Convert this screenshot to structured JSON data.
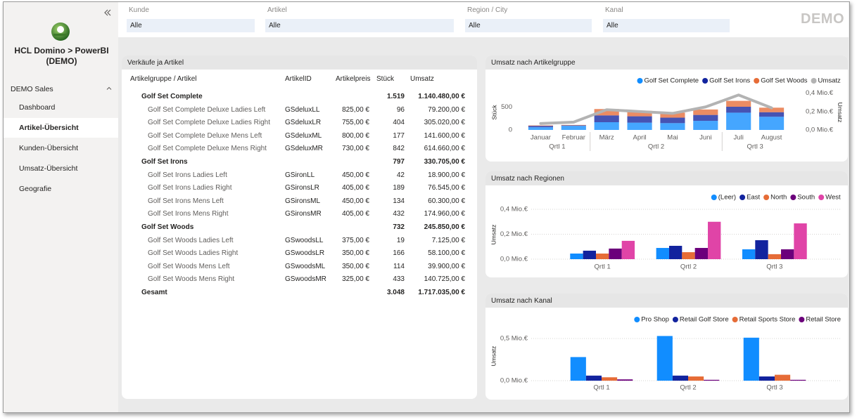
{
  "sidebar": {
    "title": "HCL Domino > PowerBI (DEMO)",
    "section": "DEMO Sales",
    "nav": [
      {
        "label": "Dashboard"
      },
      {
        "label": "Artikel-Übersicht",
        "active": true
      },
      {
        "label": "Kunden-Übersicht"
      },
      {
        "label": "Umsatz-Übersicht"
      },
      {
        "label": "Geografie"
      }
    ]
  },
  "filters": [
    {
      "label": "Kunde",
      "value": "Alle"
    },
    {
      "label": "Artikel",
      "value": "Alle"
    },
    {
      "label": "Region / City",
      "value": "Alle"
    },
    {
      "label": "Kanal",
      "value": "Alle"
    }
  ],
  "brand": "DEMO",
  "table": {
    "title": "Verkäufe ja Artikel",
    "columns": [
      "Artikelgruppe / Artikel",
      "ArtikelID",
      "Artikelpreis",
      "Stück",
      "Umsatz"
    ],
    "rows": [
      {
        "name": "Golf Set Complete",
        "group": true,
        "stueck": "1.519",
        "umsatz": "1.140.480,00 €"
      },
      {
        "name": "Golf Set Complete Deluxe Ladies Left",
        "id": "GSdeluxLL",
        "preis": "825,00 €",
        "stueck": "96",
        "umsatz": "79.200,00 €"
      },
      {
        "name": "Golf Set Complete Deluxe Ladies Right",
        "id": "GSdeluxLR",
        "preis": "755,00 €",
        "stueck": "404",
        "umsatz": "305.020,00 €"
      },
      {
        "name": "Golf Set Complete Deluxe Mens Left",
        "id": "GSdeluxML",
        "preis": "800,00 €",
        "stueck": "177",
        "umsatz": "141.600,00 €"
      },
      {
        "name": "Golf Set Complete Deluxe Mens Right",
        "id": "GSdeluxMR",
        "preis": "730,00 €",
        "stueck": "842",
        "umsatz": "614.660,00 €"
      },
      {
        "name": "Golf Set Irons",
        "group": true,
        "stueck": "797",
        "umsatz": "330.705,00 €"
      },
      {
        "name": "Golf Set Irons Ladies Left",
        "id": "GSironLL",
        "preis": "450,00 €",
        "stueck": "42",
        "umsatz": "18.900,00 €"
      },
      {
        "name": "Golf Set Irons Ladies Right",
        "id": "GSironsLR",
        "preis": "405,00 €",
        "stueck": "189",
        "umsatz": "76.545,00 €"
      },
      {
        "name": "Golf Set Irons Mens Left",
        "id": "GSironsML",
        "preis": "450,00 €",
        "stueck": "134",
        "umsatz": "60.300,00 €"
      },
      {
        "name": "Golf Set Irons Mens Right",
        "id": "GSironsMR",
        "preis": "405,00 €",
        "stueck": "432",
        "umsatz": "174.960,00 €"
      },
      {
        "name": "Golf Set Woods",
        "group": true,
        "stueck": "732",
        "umsatz": "245.850,00 €"
      },
      {
        "name": "Golf Set Woods Ladies Left",
        "id": "GSwoodsLL",
        "preis": "375,00 €",
        "stueck": "19",
        "umsatz": "7.125,00 €"
      },
      {
        "name": "Golf Set Woods Ladies Right",
        "id": "GSwoodsLR",
        "preis": "350,00 €",
        "stueck": "166",
        "umsatz": "58.100,00 €"
      },
      {
        "name": "Golf Set Woods Mens Left",
        "id": "GSwoodsML",
        "preis": "350,00 €",
        "stueck": "114",
        "umsatz": "39.900,00 €"
      },
      {
        "name": "Golf Set Woods Mens Right",
        "id": "GSwoodsMR",
        "preis": "325,00 €",
        "stueck": "433",
        "umsatz": "140.725,00 €"
      }
    ],
    "total": {
      "name": "Gesamt",
      "stueck": "3.048",
      "umsatz": "1.717.035,00 €"
    }
  },
  "chart_data": [
    {
      "type": "bar",
      "stacked": true,
      "title": "Umsatz nach Artikelgruppe",
      "y_label": "Stück",
      "y2_label": "Umsatz",
      "categories": [
        "Januar",
        "Februar",
        "März",
        "April",
        "Mai",
        "Juni",
        "Juli",
        "August"
      ],
      "category_groups": [
        {
          "label": "Qrtl 1",
          "count": 2
        },
        {
          "label": "Qrtl 2",
          "count": 4
        },
        {
          "label": "Qrtl 3",
          "count": 2
        }
      ],
      "series": [
        {
          "name": "Golf Set Complete",
          "color": "#118dff",
          "values": [
            60,
            90,
            170,
            160,
            150,
            200,
            380,
            290
          ]
        },
        {
          "name": "Golf Set Irons",
          "color": "#12239e",
          "values": [
            30,
            10,
            150,
            140,
            120,
            130,
            130,
            100
          ]
        },
        {
          "name": "Golf Set Woods",
          "color": "#e66c37",
          "values": [
            10,
            10,
            140,
            120,
            110,
            120,
            130,
            100
          ]
        },
        {
          "name": "Umsatz",
          "color": "#b3b3b3",
          "type": "line",
          "axis": "y2",
          "values": [
            0.07,
            0.085,
            0.22,
            0.2,
            0.18,
            0.25,
            0.38,
            0.24
          ]
        }
      ],
      "ylim": [
        0,
        850
      ],
      "yticks": [
        0,
        500
      ],
      "y2lim": [
        0,
        0.42
      ],
      "y2ticks": [
        {
          "value": 0,
          "label": "0,0 Mio.€"
        },
        {
          "value": 0.2,
          "label": "0,2 Mio.€"
        },
        {
          "value": 0.4,
          "label": "0,4 Mio.€"
        }
      ],
      "grid": false,
      "legend": "top-right"
    },
    {
      "type": "bar",
      "title": "Umsatz nach Regionen",
      "y_label": "Umsatz",
      "categories": [
        "Qrtl 1",
        "Qrtl 2",
        "Qrtl 3"
      ],
      "series": [
        {
          "name": "(Leer)",
          "color": "#118dff",
          "values": [
            0.045,
            0.09,
            0.079
          ]
        },
        {
          "name": "East",
          "color": "#12239e",
          "values": [
            0.068,
            0.107,
            0.152
          ]
        },
        {
          "name": "North",
          "color": "#e66c37",
          "values": [
            0.045,
            0.056,
            0.04
          ]
        },
        {
          "name": "South",
          "color": "#6b007b",
          "values": [
            0.085,
            0.09,
            0.079
          ]
        },
        {
          "name": "West",
          "color": "#e044a7",
          "values": [
            0.147,
            0.3,
            0.287
          ]
        }
      ],
      "ylim": [
        0,
        0.4
      ],
      "yticks": [
        {
          "value": 0,
          "label": "0,0 Mio.€"
        },
        {
          "value": 0.2,
          "label": "0,2 Mio.€"
        },
        {
          "value": 0.4,
          "label": "0,4 Mio.€"
        }
      ],
      "grid": true,
      "legend": "top-right"
    },
    {
      "type": "bar",
      "title": "Umsatz nach Kanal",
      "y_label": "Umsatz",
      "categories": [
        "Qrtl 1",
        "Qrtl 2",
        "Qrtl 3"
      ],
      "series": [
        {
          "name": "Pro Shop",
          "color": "#118dff",
          "values": [
            0.28,
            0.53,
            0.51
          ]
        },
        {
          "name": "Retail Golf Store",
          "color": "#12239e",
          "values": [
            0.06,
            0.06,
            0.05
          ]
        },
        {
          "name": "Retail Sports Store",
          "color": "#e66c37",
          "values": [
            0.04,
            0.05,
            0.07
          ]
        },
        {
          "name": "Retail Store",
          "color": "#6b007b",
          "values": [
            0.015,
            0.01,
            0.01
          ]
        }
      ],
      "ylim": [
        0,
        0.6
      ],
      "yticks": [
        {
          "value": 0,
          "label": "0,0 Mio.€"
        },
        {
          "value": 0.5,
          "label": "0,5 Mio.€"
        }
      ],
      "grid": true,
      "legend": "top-right"
    }
  ]
}
